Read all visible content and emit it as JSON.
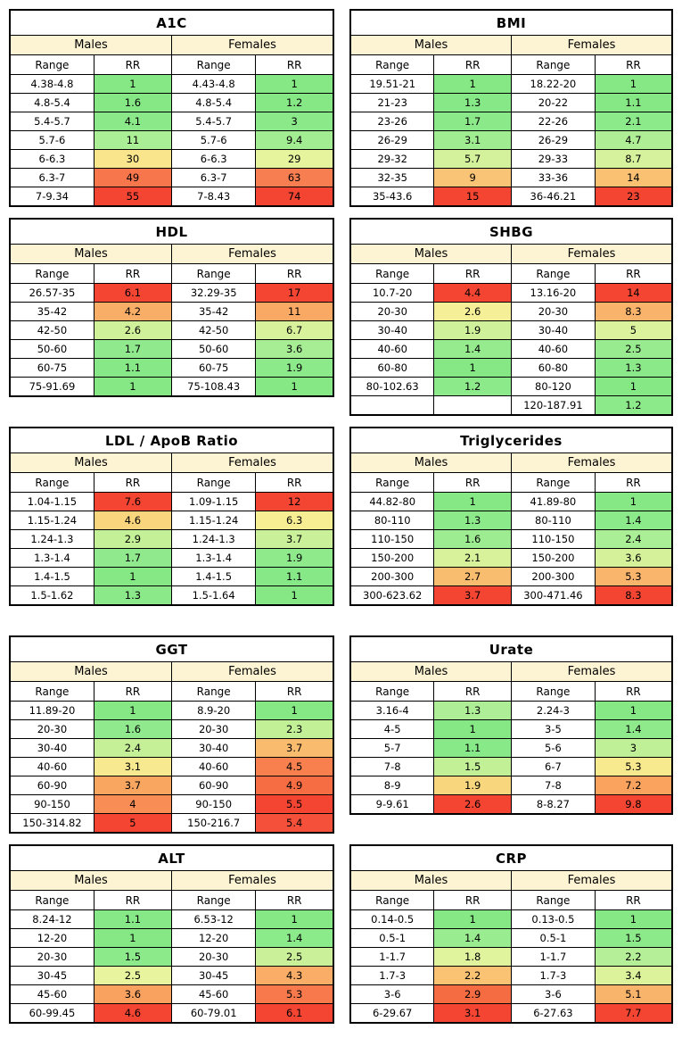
{
  "styles": {
    "page_bg": "#ffffff",
    "header_bg": "#fdf4d3",
    "border_color": "#000000",
    "text_color": "#000000",
    "rr_green": "#85e885",
    "rr_red": "#f44432"
  },
  "labels": {
    "males": "Males",
    "females": "Females",
    "range": "Range",
    "rr": "RR"
  },
  "chart_data": [
    {
      "type": "table",
      "title": "A1C",
      "males": [
        {
          "range": "4.38-4.8",
          "rr": "1",
          "color": "#85e885"
        },
        {
          "range": "4.8-5.4",
          "rr": "1.6",
          "color": "#85e885"
        },
        {
          "range": "5.4-5.7",
          "rr": "4.1",
          "color": "#8be98a"
        },
        {
          "range": "5.7-6",
          "rr": "11",
          "color": "#aaee95"
        },
        {
          "range": "6-6.3",
          "rr": "30",
          "color": "#f8e58c"
        },
        {
          "range": "6.3-7",
          "rr": "49",
          "color": "#f7764b"
        },
        {
          "range": "7-9.34",
          "rr": "55",
          "color": "#f44432"
        }
      ],
      "females": [
        {
          "range": "4.43-4.8",
          "rr": "1",
          "color": "#85e885"
        },
        {
          "range": "4.8-5.4",
          "rr": "1.2",
          "color": "#85e885"
        },
        {
          "range": "5.4-5.7",
          "rr": "3",
          "color": "#8be98a"
        },
        {
          "range": "5.7-6",
          "rr": "9.4",
          "color": "#a2ec91"
        },
        {
          "range": "6-6.3",
          "rr": "29",
          "color": "#e6f49d"
        },
        {
          "range": "6.3-7",
          "rr": "63",
          "color": "#f77e50"
        },
        {
          "range": "7-8.43",
          "rr": "74",
          "color": "#f44432"
        }
      ]
    },
    {
      "type": "table",
      "title": "BMI",
      "males": [
        {
          "range": "19.51-21",
          "rr": "1",
          "color": "#85e885"
        },
        {
          "range": "21-23",
          "rr": "1.3",
          "color": "#86e886"
        },
        {
          "range": "23-26",
          "rr": "1.7",
          "color": "#8be98a"
        },
        {
          "range": "26-29",
          "rr": "3.1",
          "color": "#a0ec91"
        },
        {
          "range": "29-32",
          "rr": "5.7",
          "color": "#d3f29b"
        },
        {
          "range": "32-35",
          "rr": "9",
          "color": "#f9c475"
        },
        {
          "range": "35-43.6",
          "rr": "15",
          "color": "#f44432"
        }
      ],
      "females": [
        {
          "range": "18.22-20",
          "rr": "1",
          "color": "#85e885"
        },
        {
          "range": "20-22",
          "rr": "1.1",
          "color": "#85e885"
        },
        {
          "range": "22-26",
          "rr": "2.1",
          "color": "#8dea8b"
        },
        {
          "range": "26-29",
          "rr": "4.7",
          "color": "#b0ee96"
        },
        {
          "range": "29-33",
          "rr": "8.7",
          "color": "#d7f29c"
        },
        {
          "range": "33-36",
          "rr": "14",
          "color": "#f9c171"
        },
        {
          "range": "36-46.21",
          "rr": "23",
          "color": "#f44432"
        }
      ]
    },
    {
      "type": "table",
      "title": "HDL",
      "males": [
        {
          "range": "26.57-35",
          "rr": "6.1",
          "color": "#f44432"
        },
        {
          "range": "35-42",
          "rr": "4.2",
          "color": "#f9ae67"
        },
        {
          "range": "42-50",
          "rr": "2.6",
          "color": "#cff19a"
        },
        {
          "range": "50-60",
          "rr": "1.7",
          "color": "#90ea8d"
        },
        {
          "range": "60-75",
          "rr": "1.1",
          "color": "#86e886"
        },
        {
          "range": "75-91.69",
          "rr": "1",
          "color": "#85e885"
        }
      ],
      "females": [
        {
          "range": "32.29-35",
          "rr": "17",
          "color": "#f44432"
        },
        {
          "range": "35-42",
          "rr": "11",
          "color": "#f9a963"
        },
        {
          "range": "42-50",
          "rr": "6.7",
          "color": "#d8f29c"
        },
        {
          "range": "50-60",
          "rr": "3.6",
          "color": "#a6ed93"
        },
        {
          "range": "60-75",
          "rr": "1.9",
          "color": "#8dea8b"
        },
        {
          "range": "75-108.43",
          "rr": "1",
          "color": "#85e885"
        }
      ]
    },
    {
      "type": "table",
      "title": "SHBG",
      "males": [
        {
          "range": "10.7-20",
          "rr": "4.4",
          "color": "#f44432"
        },
        {
          "range": "20-30",
          "rr": "2.6",
          "color": "#f5f097"
        },
        {
          "range": "30-40",
          "rr": "1.9",
          "color": "#cff19a"
        },
        {
          "range": "40-60",
          "rr": "1.4",
          "color": "#97eb8f"
        },
        {
          "range": "60-80",
          "rr": "1",
          "color": "#85e885"
        },
        {
          "range": "80-102.63",
          "rr": "1.2",
          "color": "#8dea8b"
        }
      ],
      "females": [
        {
          "range": "13.16-20",
          "rr": "14",
          "color": "#f44432"
        },
        {
          "range": "20-30",
          "rr": "8.3",
          "color": "#f9b36b"
        },
        {
          "range": "30-40",
          "rr": "5",
          "color": "#dcf39d"
        },
        {
          "range": "40-60",
          "rr": "2.5",
          "color": "#99eb90"
        },
        {
          "range": "60-80",
          "rr": "1.3",
          "color": "#8be98a"
        },
        {
          "range": "80-120",
          "rr": "1",
          "color": "#85e885"
        },
        {
          "range": "120-187.91",
          "rr": "1.2",
          "color": "#8dea8b"
        }
      ]
    },
    {
      "type": "table",
      "title": "LDL / ApoB Ratio",
      "males": [
        {
          "range": "1.04-1.15",
          "rr": "7.6",
          "color": "#f44432"
        },
        {
          "range": "1.15-1.24",
          "rr": "4.6",
          "color": "#f9d67e"
        },
        {
          "range": "1.24-1.3",
          "rr": "2.9",
          "color": "#c4f098"
        },
        {
          "range": "1.3-1.4",
          "rr": "1.7",
          "color": "#90ea8d"
        },
        {
          "range": "1.4-1.5",
          "rr": "1",
          "color": "#85e885"
        },
        {
          "range": "1.5-1.62",
          "rr": "1.3",
          "color": "#8be98a"
        }
      ],
      "females": [
        {
          "range": "1.09-1.15",
          "rr": "12",
          "color": "#f44432"
        },
        {
          "range": "1.15-1.24",
          "rr": "6.3",
          "color": "#f7ee94"
        },
        {
          "range": "1.24-1.3",
          "rr": "3.7",
          "color": "#caf199"
        },
        {
          "range": "1.3-1.4",
          "rr": "1.9",
          "color": "#8fea8c"
        },
        {
          "range": "1.4-1.5",
          "rr": "1.1",
          "color": "#86e886"
        },
        {
          "range": "1.5-1.64",
          "rr": "1",
          "color": "#85e885"
        }
      ]
    },
    {
      "type": "table",
      "title": "Triglycerides",
      "males": [
        {
          "range": "44.82-80",
          "rr": "1",
          "color": "#85e885"
        },
        {
          "range": "80-110",
          "rr": "1.3",
          "color": "#8dea8b"
        },
        {
          "range": "110-150",
          "rr": "1.6",
          "color": "#9eec91"
        },
        {
          "range": "150-200",
          "rr": "2.1",
          "color": "#d7f29b"
        },
        {
          "range": "200-300",
          "rr": "2.7",
          "color": "#f9bd6f"
        },
        {
          "range": "300-623.62",
          "rr": "3.7",
          "color": "#f44432"
        }
      ],
      "females": [
        {
          "range": "41.89-80",
          "rr": "1",
          "color": "#85e885"
        },
        {
          "range": "80-110",
          "rr": "1.4",
          "color": "#8bea8a"
        },
        {
          "range": "110-150",
          "rr": "2.4",
          "color": "#aaee95"
        },
        {
          "range": "150-200",
          "rr": "3.6",
          "color": "#d5f29b"
        },
        {
          "range": "200-300",
          "rr": "5.3",
          "color": "#f9b56c"
        },
        {
          "range": "300-471.46",
          "rr": "8.3",
          "color": "#f44432"
        }
      ]
    },
    {
      "type": "table",
      "title": "GGT",
      "males": [
        {
          "range": "11.89-20",
          "rr": "1",
          "color": "#85e885"
        },
        {
          "range": "20-30",
          "rr": "1.6",
          "color": "#90ea8d"
        },
        {
          "range": "30-40",
          "rr": "2.4",
          "color": "#c6f098"
        },
        {
          "range": "40-60",
          "rr": "3.1",
          "color": "#f6e98f"
        },
        {
          "range": "60-90",
          "rr": "3.7",
          "color": "#f9a661"
        },
        {
          "range": "90-150",
          "rr": "4",
          "color": "#f88d56"
        },
        {
          "range": "150-314.82",
          "rr": "5",
          "color": "#f44432"
        }
      ],
      "females": [
        {
          "range": "8.9-20",
          "rr": "1",
          "color": "#85e885"
        },
        {
          "range": "20-30",
          "rr": "2.3",
          "color": "#c2f097"
        },
        {
          "range": "30-40",
          "rr": "3.7",
          "color": "#f9bb6e"
        },
        {
          "range": "40-60",
          "rr": "4.5",
          "color": "#f8804f"
        },
        {
          "range": "60-90",
          "rr": "4.9",
          "color": "#f66d43"
        },
        {
          "range": "90-150",
          "rr": "5.5",
          "color": "#f44432"
        },
        {
          "range": "150-216.7",
          "rr": "5.4",
          "color": "#f5503a"
        }
      ]
    },
    {
      "type": "table",
      "title": "Urate",
      "males": [
        {
          "range": "3.16-4",
          "rr": "1.3",
          "color": "#aeee96"
        },
        {
          "range": "4-5",
          "rr": "1",
          "color": "#85e885"
        },
        {
          "range": "5-7",
          "rr": "1.1",
          "color": "#88e988"
        },
        {
          "range": "7-8",
          "rr": "1.5",
          "color": "#c2f097"
        },
        {
          "range": "8-9",
          "rr": "1.9",
          "color": "#f8d67e"
        },
        {
          "range": "9-9.61",
          "rr": "2.6",
          "color": "#f44432"
        }
      ],
      "females": [
        {
          "range": "2.24-3",
          "rr": "1",
          "color": "#85e885"
        },
        {
          "range": "3-5",
          "rr": "1.4",
          "color": "#8fea8c"
        },
        {
          "range": "5-6",
          "rr": "3",
          "color": "#bff097"
        },
        {
          "range": "6-7",
          "rr": "5.3",
          "color": "#f7e98e"
        },
        {
          "range": "7-8",
          "rr": "7.2",
          "color": "#f9a35f"
        },
        {
          "range": "8-8.27",
          "rr": "9.8",
          "color": "#f44432"
        }
      ]
    },
    {
      "type": "table",
      "title": "ALT",
      "males": [
        {
          "range": "8.24-12",
          "rr": "1.1",
          "color": "#86e886"
        },
        {
          "range": "12-20",
          "rr": "1",
          "color": "#85e885"
        },
        {
          "range": "20-30",
          "rr": "1.5",
          "color": "#8dea8b"
        },
        {
          "range": "30-45",
          "rr": "2.5",
          "color": "#e8f49e"
        },
        {
          "range": "45-60",
          "rr": "3.6",
          "color": "#f9a260"
        },
        {
          "range": "60-99.45",
          "rr": "4.6",
          "color": "#f44432"
        }
      ],
      "females": [
        {
          "range": "6.53-12",
          "rr": "1",
          "color": "#85e885"
        },
        {
          "range": "12-20",
          "rr": "1.4",
          "color": "#8bea8a"
        },
        {
          "range": "20-30",
          "rr": "2.5",
          "color": "#caf199"
        },
        {
          "range": "30-45",
          "rr": "4.3",
          "color": "#f9ad66"
        },
        {
          "range": "45-60",
          "rr": "5.3",
          "color": "#f7794c"
        },
        {
          "range": "60-79.01",
          "rr": "6.1",
          "color": "#f44432"
        }
      ]
    },
    {
      "type": "table",
      "title": "CRP",
      "males": [
        {
          "range": "0.14-0.5",
          "rr": "1",
          "color": "#85e885"
        },
        {
          "range": "0.5-1",
          "rr": "1.4",
          "color": "#9aec90"
        },
        {
          "range": "1-1.7",
          "rr": "1.8",
          "color": "#e0f39d"
        },
        {
          "range": "1.7-3",
          "rr": "2.2",
          "color": "#f9c373"
        },
        {
          "range": "3-6",
          "rr": "2.9",
          "color": "#f66c42"
        },
        {
          "range": "6-29.67",
          "rr": "3.1",
          "color": "#f44432"
        }
      ],
      "females": [
        {
          "range": "0.13-0.5",
          "rr": "1",
          "color": "#85e885"
        },
        {
          "range": "0.5-1",
          "rr": "1.5",
          "color": "#8cea8b"
        },
        {
          "range": "1-1.7",
          "rr": "2.2",
          "color": "#b5ef97"
        },
        {
          "range": "1.7-3",
          "rr": "3.4",
          "color": "#dcf39c"
        },
        {
          "range": "3-6",
          "rr": "5.1",
          "color": "#f9b46c"
        },
        {
          "range": "6-27.63",
          "rr": "7.7",
          "color": "#f44432"
        }
      ]
    }
  ]
}
